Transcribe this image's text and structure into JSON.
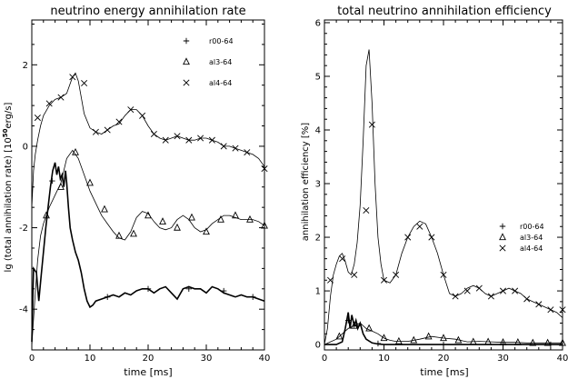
{
  "chart_data": [
    {
      "type": "line",
      "title": "neutrino energy annihilation rate",
      "xlabel": "time [ms]",
      "ylabel": "lg (total annihilation rate) [10",
      "ylabel_exp": "50",
      "ylabel_unit": "erg/s]",
      "xlim": [
        0,
        40
      ],
      "ylim": [
        -5,
        3.1
      ],
      "x_ticks": [
        0,
        10,
        20,
        30,
        40
      ],
      "y_ticks": [
        -4,
        -2,
        0,
        2
      ],
      "legend": {
        "position": "top-right",
        "entries": [
          {
            "name": "r00-64",
            "marker": "plus"
          },
          {
            "name": "al3-64",
            "marker": "triangle"
          },
          {
            "name": "al4-64",
            "marker": "cross"
          }
        ]
      },
      "series": [
        {
          "name": "r00-64",
          "style": "bold",
          "marker": "plus",
          "x": [
            0,
            0.3,
            0.8,
            1.2,
            1.6,
            2.0,
            2.4,
            2.8,
            3.2,
            3.6,
            4.0,
            4.3,
            4.6,
            4.9,
            5.2,
            5.5,
            5.8,
            6.0,
            6.3,
            6.6,
            7.0,
            7.5,
            8.0,
            8.5,
            9.0,
            9.5,
            10,
            10.5,
            11,
            12,
            13,
            14,
            15,
            16,
            17,
            18,
            19,
            20,
            21,
            22,
            23,
            24,
            25,
            26,
            27,
            28,
            29,
            30,
            31,
            32,
            33,
            34,
            35,
            36,
            37,
            38,
            39,
            40
          ],
          "y": [
            -4.8,
            -3.0,
            -3.1,
            -3.8,
            -3.2,
            -2.6,
            -2.0,
            -1.5,
            -1.0,
            -0.6,
            -0.4,
            -0.7,
            -0.5,
            -0.8,
            -0.7,
            -1.0,
            -0.6,
            -0.9,
            -1.5,
            -2.0,
            -2.3,
            -2.6,
            -2.8,
            -3.1,
            -3.5,
            -3.8,
            -3.95,
            -3.9,
            -3.8,
            -3.75,
            -3.7,
            -3.65,
            -3.7,
            -3.6,
            -3.65,
            -3.55,
            -3.5,
            -3.5,
            -3.6,
            -3.5,
            -3.45,
            -3.6,
            -3.75,
            -3.5,
            -3.45,
            -3.5,
            -3.5,
            -3.6,
            -3.45,
            -3.5,
            -3.6,
            -3.65,
            -3.7,
            -3.65,
            -3.7,
            -3.7,
            -3.75,
            -3.8
          ],
          "marker_x": [
            3.5,
            13,
            20,
            27,
            33,
            38
          ],
          "marker_y": [
            -0.85,
            -3.7,
            -3.5,
            -3.5,
            -3.55,
            -3.7
          ]
        },
        {
          "name": "al3-64",
          "style": "thin",
          "marker": "triangle",
          "x": [
            0,
            0.5,
            1,
            1.5,
            2,
            3,
            4,
            5,
            6,
            7,
            8,
            9,
            10,
            11,
            12,
            13,
            14,
            15,
            16,
            17,
            18,
            19,
            20,
            21,
            22,
            23,
            24,
            25,
            26,
            27,
            28,
            29,
            30,
            31,
            32,
            33,
            34,
            35,
            36,
            37,
            38,
            39,
            40
          ],
          "y": [
            -4.9,
            -3.8,
            -2.8,
            -2.2,
            -1.9,
            -1.5,
            -1.2,
            -0.9,
            -0.3,
            -0.1,
            -0.3,
            -0.7,
            -1.1,
            -1.4,
            -1.7,
            -1.9,
            -2.1,
            -2.25,
            -2.3,
            -2.1,
            -1.75,
            -1.6,
            -1.65,
            -1.85,
            -2.0,
            -2.05,
            -2.0,
            -1.8,
            -1.7,
            -1.8,
            -2.0,
            -2.1,
            -2.05,
            -1.9,
            -1.8,
            -1.7,
            -1.7,
            -1.75,
            -1.8,
            -1.8,
            -1.8,
            -1.85,
            -1.95
          ],
          "marker_x": [
            2.5,
            5,
            7.5,
            10,
            12.5,
            15,
            17.5,
            20,
            22.5,
            25,
            27.5,
            30,
            32.5,
            35,
            37.5,
            40
          ],
          "marker_y": [
            -1.7,
            -1.0,
            -0.15,
            -0.9,
            -1.55,
            -2.2,
            -2.15,
            -1.7,
            -1.85,
            -2.0,
            -1.75,
            -2.1,
            -1.8,
            -1.7,
            -1.8,
            -1.95
          ]
        },
        {
          "name": "al4-64",
          "style": "thin",
          "marker": "cross",
          "x": [
            0,
            0.3,
            0.6,
            1,
            1.5,
            2,
            3,
            4,
            5,
            6,
            7,
            7.5,
            8,
            8.5,
            9,
            10,
            11,
            12,
            13,
            14,
            15,
            16,
            17,
            18,
            19,
            20,
            21,
            22,
            23,
            24,
            25,
            26,
            27,
            28,
            29,
            30,
            31,
            32,
            33,
            34,
            35,
            36,
            37,
            38,
            39,
            40
          ],
          "y": [
            -1.5,
            -0.6,
            -0.2,
            0.15,
            0.5,
            0.75,
            1.0,
            1.15,
            1.2,
            1.3,
            1.7,
            1.8,
            1.6,
            1.2,
            0.8,
            0.45,
            0.35,
            0.3,
            0.4,
            0.5,
            0.55,
            0.75,
            0.9,
            0.9,
            0.75,
            0.5,
            0.3,
            0.2,
            0.15,
            0.2,
            0.25,
            0.2,
            0.15,
            0.15,
            0.2,
            0.2,
            0.15,
            0.1,
            0.0,
            0.0,
            -0.05,
            -0.1,
            -0.15,
            -0.2,
            -0.3,
            -0.5
          ],
          "marker_x": [
            1,
            3,
            5,
            7,
            9,
            11,
            13,
            15,
            17,
            19,
            21,
            23,
            25,
            27,
            29,
            31,
            33,
            35,
            37,
            40
          ],
          "marker_y": [
            0.7,
            1.05,
            1.2,
            1.7,
            1.55,
            0.35,
            0.4,
            0.6,
            0.9,
            0.75,
            0.3,
            0.15,
            0.25,
            0.15,
            0.2,
            0.15,
            0.0,
            -0.05,
            -0.15,
            -0.55
          ]
        }
      ]
    },
    {
      "type": "line",
      "title": "total neutrino annihilation efficiency",
      "xlabel": "time [ms]",
      "ylabel": "annihilation efficiency [%]",
      "xlim": [
        0,
        40
      ],
      "ylim": [
        -0.1,
        6.05
      ],
      "x_ticks": [
        0,
        10,
        20,
        30,
        40
      ],
      "y_ticks": [
        0,
        1,
        2,
        3,
        4,
        5,
        6
      ],
      "legend": {
        "position": "center-right",
        "entries": [
          {
            "name": "r00-64",
            "marker": "plus"
          },
          {
            "name": "al3-64",
            "marker": "triangle"
          },
          {
            "name": "al4-64",
            "marker": "cross"
          }
        ]
      },
      "series": [
        {
          "name": "r00-64",
          "style": "bold",
          "marker": "plus",
          "x": [
            0,
            2,
            3,
            3.5,
            4,
            4.3,
            4.6,
            5,
            5.3,
            5.6,
            6,
            6.5,
            7,
            8,
            9,
            10,
            12,
            15,
            20,
            25,
            30,
            35,
            40
          ],
          "y": [
            0,
            0,
            0.05,
            0.3,
            0.6,
            0.3,
            0.55,
            0.35,
            0.45,
            0.3,
            0.4,
            0.2,
            0.1,
            0.03,
            0.01,
            0.0,
            0.0,
            0.0,
            0.0,
            0.0,
            0.0,
            0.0,
            0.0
          ],
          "marker_x": [
            4,
            5.5,
            9,
            20,
            30,
            38
          ],
          "marker_y": [
            0.45,
            0.35,
            0.02,
            0.0,
            0.0,
            0.0
          ]
        },
        {
          "name": "al3-64",
          "style": "thin",
          "marker": "triangle",
          "x": [
            0,
            1,
            2,
            3,
            4,
            5,
            6,
            7,
            8,
            9,
            10,
            11,
            12,
            14,
            16,
            18,
            20,
            22,
            24,
            26,
            28,
            30,
            32,
            34,
            36,
            38,
            40
          ],
          "y": [
            0,
            0.05,
            0.1,
            0.2,
            0.3,
            0.35,
            0.4,
            0.3,
            0.25,
            0.2,
            0.12,
            0.08,
            0.06,
            0.06,
            0.1,
            0.15,
            0.12,
            0.1,
            0.05,
            0.06,
            0.05,
            0.04,
            0.04,
            0.03,
            0.03,
            0.03,
            0.03
          ],
          "marker_x": [
            2.5,
            5,
            7.5,
            10,
            12.5,
            15,
            17.5,
            20,
            22.5,
            25,
            27.5,
            30,
            32.5,
            35,
            37.5,
            40
          ],
          "marker_y": [
            0.15,
            0.35,
            0.3,
            0.12,
            0.06,
            0.08,
            0.15,
            0.12,
            0.08,
            0.05,
            0.05,
            0.04,
            0.04,
            0.03,
            0.03,
            0.03
          ]
        },
        {
          "name": "al4-64",
          "style": "thin",
          "marker": "cross",
          "x": [
            0,
            0.5,
            1,
            1.5,
            2,
            2.5,
            3,
            3.5,
            4,
            4.5,
            5,
            5.5,
            6,
            6.5,
            7,
            7.5,
            8,
            8.5,
            9,
            9.5,
            10,
            11,
            12,
            13,
            14,
            15,
            16,
            17,
            18,
            19,
            20,
            21,
            22,
            23,
            24,
            25,
            26,
            27,
            28,
            29,
            30,
            31,
            32,
            33,
            34,
            35,
            36,
            37,
            38,
            39,
            40
          ],
          "y": [
            0,
            0.3,
            0.9,
            1.3,
            1.5,
            1.65,
            1.7,
            1.55,
            1.35,
            1.3,
            1.5,
            1.9,
            2.6,
            3.8,
            5.2,
            5.5,
            4.5,
            3.0,
            2.0,
            1.5,
            1.2,
            1.15,
            1.3,
            1.7,
            2.0,
            2.2,
            2.3,
            2.25,
            2.0,
            1.7,
            1.3,
            0.95,
            0.9,
            0.95,
            1.05,
            1.1,
            1.05,
            0.95,
            0.9,
            0.95,
            1.0,
            1.05,
            1.0,
            0.95,
            0.85,
            0.8,
            0.75,
            0.7,
            0.65,
            0.6,
            0.5
          ],
          "marker_x": [
            1,
            3,
            5,
            7,
            8,
            10,
            12,
            14,
            16,
            18,
            20,
            22,
            24,
            26,
            28,
            30,
            32,
            34,
            36,
            38,
            40
          ],
          "marker_y": [
            1.2,
            1.6,
            1.3,
            2.5,
            4.1,
            1.2,
            1.3,
            2.0,
            2.2,
            2.0,
            1.3,
            0.9,
            1.0,
            1.05,
            0.9,
            1.0,
            1.0,
            0.85,
            0.75,
            0.65,
            0.65
          ]
        }
      ]
    }
  ]
}
